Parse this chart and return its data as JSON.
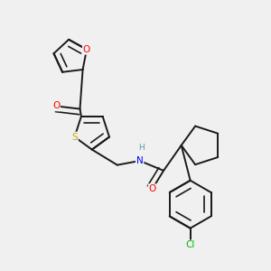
{
  "bg_color": "#f0f0f0",
  "bond_color": "#1a1a1a",
  "atom_colors": {
    "O": "#ff0000",
    "S": "#ccaa00",
    "N": "#0000ff",
    "Cl": "#00bb00",
    "H": "#5599aa",
    "C": "#1a1a1a"
  },
  "bond_width": 1.4,
  "figsize": [
    3.0,
    3.0
  ],
  "dpi": 100
}
